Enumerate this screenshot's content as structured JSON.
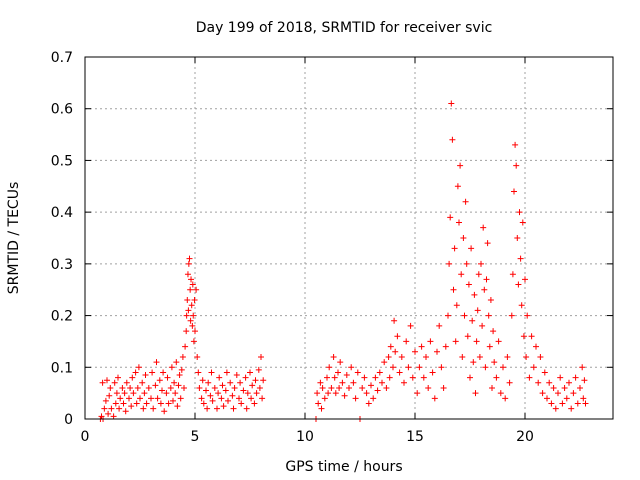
{
  "chart_data": {
    "type": "scatter",
    "title": "Day 199 of 2018, SRMTID for receiver svic",
    "xlabel": "GPS time / hours",
    "ylabel": "SRMTID / TECUs",
    "xlim": [
      0,
      24
    ],
    "ylim": [
      0,
      0.7
    ],
    "xticks": [
      "0",
      "5",
      "10",
      "15",
      "20"
    ],
    "yticks": [
      "0",
      "0.1",
      "0.2",
      "0.3",
      "0.4",
      "0.5",
      "0.6",
      "0.7"
    ],
    "grid": true,
    "marker": "plus",
    "series": [
      {
        "name": "svic",
        "color": "#ff0000",
        "points": [
          [
            0.7,
            0.0
          ],
          [
            0.75,
            0.005
          ],
          [
            0.8,
            0.07
          ],
          [
            0.82,
            0.0
          ],
          [
            0.88,
            0.02
          ],
          [
            0.95,
            0.035
          ],
          [
            1.0,
            0.075
          ],
          [
            1.05,
            0.01
          ],
          [
            1.1,
            0.045
          ],
          [
            1.15,
            0.06
          ],
          [
            1.2,
            0.02
          ],
          [
            1.3,
            0.005
          ],
          [
            1.35,
            0.07
          ],
          [
            1.4,
            0.03
          ],
          [
            1.45,
            0.05
          ],
          [
            1.5,
            0.08
          ],
          [
            1.55,
            0.02
          ],
          [
            1.6,
            0.04
          ],
          [
            1.7,
            0.06
          ],
          [
            1.75,
            0.03
          ],
          [
            1.8,
            0.05
          ],
          [
            1.85,
            0.015
          ],
          [
            1.9,
            0.07
          ],
          [
            2.0,
            0.04
          ],
          [
            2.05,
            0.06
          ],
          [
            2.1,
            0.025
          ],
          [
            2.15,
            0.08
          ],
          [
            2.2,
            0.05
          ],
          [
            2.3,
            0.09
          ],
          [
            2.35,
            0.03
          ],
          [
            2.4,
            0.06
          ],
          [
            2.45,
            0.1
          ],
          [
            2.5,
            0.04
          ],
          [
            2.6,
            0.07
          ],
          [
            2.65,
            0.02
          ],
          [
            2.7,
            0.05
          ],
          [
            2.75,
            0.085
          ],
          [
            2.8,
            0.03
          ],
          [
            2.9,
            0.06
          ],
          [
            3.0,
            0.04
          ],
          [
            3.05,
            0.09
          ],
          [
            3.1,
            0.02
          ],
          [
            3.2,
            0.065
          ],
          [
            3.25,
            0.11
          ],
          [
            3.3,
            0.04
          ],
          [
            3.4,
            0.075
          ],
          [
            3.45,
            0.03
          ],
          [
            3.5,
            0.055
          ],
          [
            3.55,
            0.09
          ],
          [
            3.6,
            0.015
          ],
          [
            3.7,
            0.05
          ],
          [
            3.75,
            0.08
          ],
          [
            3.8,
            0.03
          ],
          [
            3.9,
            0.06
          ],
          [
            3.95,
            0.1
          ],
          [
            4.0,
            0.035
          ],
          [
            4.05,
            0.07
          ],
          [
            4.1,
            0.05
          ],
          [
            4.15,
            0.11
          ],
          [
            4.2,
            0.025
          ],
          [
            4.25,
            0.065
          ],
          [
            4.3,
            0.085
          ],
          [
            4.35,
            0.04
          ],
          [
            4.4,
            0.095
          ],
          [
            4.45,
            0.12
          ],
          [
            4.5,
            0.06
          ],
          [
            4.55,
            0.14
          ],
          [
            4.6,
            0.17
          ],
          [
            4.62,
            0.2
          ],
          [
            4.65,
            0.23
          ],
          [
            4.68,
            0.28
          ],
          [
            4.7,
            0.21
          ],
          [
            4.72,
            0.3
          ],
          [
            4.75,
            0.31
          ],
          [
            4.78,
            0.25
          ],
          [
            4.8,
            0.19
          ],
          [
            4.82,
            0.27
          ],
          [
            4.85,
            0.22
          ],
          [
            4.88,
            0.18
          ],
          [
            4.9,
            0.26
          ],
          [
            4.92,
            0.2
          ],
          [
            4.95,
            0.15
          ],
          [
            4.98,
            0.23
          ],
          [
            5.0,
            0.17
          ],
          [
            5.05,
            0.25
          ],
          [
            5.1,
            0.12
          ],
          [
            5.15,
            0.09
          ],
          [
            5.2,
            0.06
          ],
          [
            5.3,
            0.04
          ],
          [
            5.35,
            0.075
          ],
          [
            5.4,
            0.03
          ],
          [
            5.5,
            0.055
          ],
          [
            5.55,
            0.02
          ],
          [
            5.6,
            0.07
          ],
          [
            5.7,
            0.045
          ],
          [
            5.75,
            0.09
          ],
          [
            5.8,
            0.035
          ],
          [
            5.9,
            0.06
          ],
          [
            6.0,
            0.02
          ],
          [
            6.05,
            0.05
          ],
          [
            6.1,
            0.08
          ],
          [
            6.2,
            0.04
          ],
          [
            6.25,
            0.065
          ],
          [
            6.3,
            0.025
          ],
          [
            6.4,
            0.055
          ],
          [
            6.45,
            0.09
          ],
          [
            6.5,
            0.035
          ],
          [
            6.6,
            0.07
          ],
          [
            6.7,
            0.045
          ],
          [
            6.75,
            0.02
          ],
          [
            6.8,
            0.06
          ],
          [
            6.9,
            0.085
          ],
          [
            7.0,
            0.04
          ],
          [
            7.05,
            0.07
          ],
          [
            7.1,
            0.03
          ],
          [
            7.2,
            0.055
          ],
          [
            7.3,
            0.08
          ],
          [
            7.35,
            0.02
          ],
          [
            7.4,
            0.05
          ],
          [
            7.5,
            0.09
          ],
          [
            7.55,
            0.04
          ],
          [
            7.6,
            0.065
          ],
          [
            7.7,
            0.03
          ],
          [
            7.75,
            0.075
          ],
          [
            7.8,
            0.05
          ],
          [
            7.9,
            0.095
          ],
          [
            7.95,
            0.06
          ],
          [
            8.0,
            0.12
          ],
          [
            8.05,
            0.04
          ],
          [
            8.1,
            0.075
          ],
          [
            10.5,
            0.0
          ],
          [
            10.55,
            0.05
          ],
          [
            10.6,
            0.03
          ],
          [
            10.7,
            0.07
          ],
          [
            10.75,
            0.02
          ],
          [
            10.8,
            0.06
          ],
          [
            10.9,
            0.04
          ],
          [
            11.0,
            0.08
          ],
          [
            11.05,
            0.05
          ],
          [
            11.1,
            0.1
          ],
          [
            11.2,
            0.06
          ],
          [
            11.3,
            0.12
          ],
          [
            11.35,
            0.08
          ],
          [
            11.4,
            0.05
          ],
          [
            11.5,
            0.09
          ],
          [
            11.55,
            0.06
          ],
          [
            11.6,
            0.11
          ],
          [
            11.7,
            0.07
          ],
          [
            11.8,
            0.045
          ],
          [
            11.9,
            0.085
          ],
          [
            12.0,
            0.06
          ],
          [
            12.1,
            0.1
          ],
          [
            12.2,
            0.07
          ],
          [
            12.3,
            0.04
          ],
          [
            12.4,
            0.09
          ],
          [
            12.5,
            0.0
          ],
          [
            12.6,
            0.06
          ],
          [
            12.7,
            0.08
          ],
          [
            12.8,
            0.05
          ],
          [
            12.9,
            0.03
          ],
          [
            13.0,
            0.065
          ],
          [
            13.1,
            0.04
          ],
          [
            13.2,
            0.08
          ],
          [
            13.3,
            0.055
          ],
          [
            13.4,
            0.09
          ],
          [
            13.5,
            0.07
          ],
          [
            13.6,
            0.11
          ],
          [
            13.7,
            0.06
          ],
          [
            13.8,
            0.12
          ],
          [
            13.85,
            0.08
          ],
          [
            13.9,
            0.14
          ],
          [
            14.0,
            0.1
          ],
          [
            14.05,
            0.19
          ],
          [
            14.1,
            0.13
          ],
          [
            14.2,
            0.16
          ],
          [
            14.3,
            0.09
          ],
          [
            14.4,
            0.12
          ],
          [
            14.5,
            0.07
          ],
          [
            14.6,
            0.15
          ],
          [
            14.7,
            0.1
          ],
          [
            14.8,
            0.18
          ],
          [
            14.9,
            0.08
          ],
          [
            15.0,
            0.13
          ],
          [
            15.1,
            0.05
          ],
          [
            15.2,
            0.1
          ],
          [
            15.3,
            0.14
          ],
          [
            15.4,
            0.08
          ],
          [
            15.5,
            0.12
          ],
          [
            15.6,
            0.06
          ],
          [
            15.7,
            0.15
          ],
          [
            15.8,
            0.09
          ],
          [
            15.9,
            0.04
          ],
          [
            16.0,
            0.13
          ],
          [
            16.1,
            0.18
          ],
          [
            16.2,
            0.1
          ],
          [
            16.3,
            0.06
          ],
          [
            16.4,
            0.14
          ],
          [
            16.5,
            0.2
          ],
          [
            16.55,
            0.3
          ],
          [
            16.6,
            0.39
          ],
          [
            16.65,
            0.61
          ],
          [
            16.7,
            0.54
          ],
          [
            16.75,
            0.25
          ],
          [
            16.8,
            0.33
          ],
          [
            16.85,
            0.15
          ],
          [
            16.9,
            0.22
          ],
          [
            16.95,
            0.45
          ],
          [
            17.0,
            0.38
          ],
          [
            17.05,
            0.49
          ],
          [
            17.1,
            0.28
          ],
          [
            17.15,
            0.12
          ],
          [
            17.2,
            0.35
          ],
          [
            17.25,
            0.2
          ],
          [
            17.3,
            0.42
          ],
          [
            17.35,
            0.3
          ],
          [
            17.4,
            0.16
          ],
          [
            17.45,
            0.26
          ],
          [
            17.5,
            0.08
          ],
          [
            17.55,
            0.33
          ],
          [
            17.6,
            0.19
          ],
          [
            17.65,
            0.11
          ],
          [
            17.7,
            0.24
          ],
          [
            17.75,
            0.05
          ],
          [
            17.8,
            0.15
          ],
          [
            17.85,
            0.21
          ],
          [
            17.9,
            0.28
          ],
          [
            17.95,
            0.12
          ],
          [
            18.0,
            0.3
          ],
          [
            18.05,
            0.18
          ],
          [
            18.1,
            0.37
          ],
          [
            18.15,
            0.25
          ],
          [
            18.2,
            0.1
          ],
          [
            18.25,
            0.27
          ],
          [
            18.3,
            0.34
          ],
          [
            18.35,
            0.2
          ],
          [
            18.4,
            0.14
          ],
          [
            18.45,
            0.23
          ],
          [
            18.5,
            0.06
          ],
          [
            18.55,
            0.17
          ],
          [
            18.6,
            0.11
          ],
          [
            18.7,
            0.08
          ],
          [
            18.8,
            0.15
          ],
          [
            18.9,
            0.05
          ],
          [
            19.0,
            0.1
          ],
          [
            19.1,
            0.04
          ],
          [
            19.2,
            0.12
          ],
          [
            19.3,
            0.07
          ],
          [
            19.4,
            0.2
          ],
          [
            19.45,
            0.28
          ],
          [
            19.5,
            0.44
          ],
          [
            19.55,
            0.53
          ],
          [
            19.6,
            0.49
          ],
          [
            19.65,
            0.35
          ],
          [
            19.7,
            0.26
          ],
          [
            19.75,
            0.4
          ],
          [
            19.8,
            0.31
          ],
          [
            19.85,
            0.22
          ],
          [
            19.9,
            0.38
          ],
          [
            19.95,
            0.16
          ],
          [
            20.0,
            0.27
          ],
          [
            20.05,
            0.12
          ],
          [
            20.1,
            0.2
          ],
          [
            20.2,
            0.08
          ],
          [
            20.3,
            0.16
          ],
          [
            20.4,
            0.1
          ],
          [
            20.5,
            0.14
          ],
          [
            20.6,
            0.07
          ],
          [
            20.7,
            0.12
          ],
          [
            20.8,
            0.05
          ],
          [
            20.9,
            0.09
          ],
          [
            21.0,
            0.04
          ],
          [
            21.1,
            0.07
          ],
          [
            21.2,
            0.03
          ],
          [
            21.3,
            0.06
          ],
          [
            21.4,
            0.02
          ],
          [
            21.5,
            0.05
          ],
          [
            21.6,
            0.08
          ],
          [
            21.7,
            0.03
          ],
          [
            21.8,
            0.06
          ],
          [
            21.9,
            0.04
          ],
          [
            22.0,
            0.07
          ],
          [
            22.1,
            0.02
          ],
          [
            22.2,
            0.05
          ],
          [
            22.3,
            0.08
          ],
          [
            22.4,
            0.03
          ],
          [
            22.5,
            0.06
          ],
          [
            22.6,
            0.1
          ],
          [
            22.65,
            0.04
          ],
          [
            22.7,
            0.075
          ],
          [
            22.75,
            0.03
          ]
        ]
      }
    ]
  }
}
